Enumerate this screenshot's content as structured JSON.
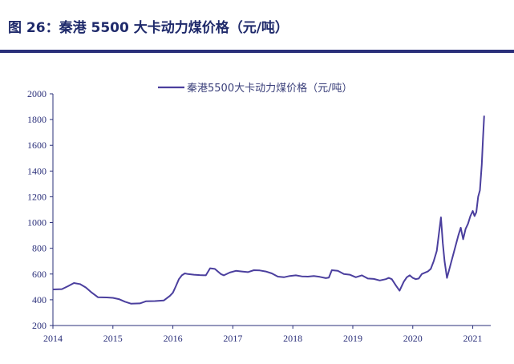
{
  "figure": {
    "title": "图 26：秦港 5500 大卡动力煤价格（元/吨）"
  },
  "colors": {
    "line": "#4b3f9e",
    "axis": "#2a2f7a",
    "rule": "#2a2f7a"
  },
  "chart_data": {
    "type": "line",
    "title": "",
    "xlabel": "",
    "ylabel": "",
    "xlim": [
      2014,
      2021.3
    ],
    "ylim": [
      200,
      2000
    ],
    "yticks": [
      200,
      400,
      600,
      800,
      1000,
      1200,
      1400,
      1600,
      1800,
      2000
    ],
    "xticks": [
      2014,
      2015,
      2016,
      2017,
      2018,
      2019,
      2020,
      2021
    ],
    "grid": false,
    "legend_position": "top",
    "series": [
      {
        "name": "秦港5500大卡动力煤价格（元/吨）",
        "x": [
          2014.0,
          2014.15,
          2014.25,
          2014.35,
          2014.45,
          2014.55,
          2014.65,
          2014.75,
          2014.9,
          2015.0,
          2015.1,
          2015.2,
          2015.3,
          2015.45,
          2015.55,
          2015.7,
          2015.85,
          2015.95,
          2016.0,
          2016.05,
          2016.1,
          2016.15,
          2016.2,
          2016.25,
          2016.35,
          2016.45,
          2016.55,
          2016.62,
          2016.7,
          2016.8,
          2016.85,
          2016.95,
          2017.05,
          2017.15,
          2017.25,
          2017.35,
          2017.45,
          2017.55,
          2017.65,
          2017.75,
          2017.85,
          2017.95,
          2018.05,
          2018.15,
          2018.25,
          2018.35,
          2018.45,
          2018.55,
          2018.6,
          2018.65,
          2018.75,
          2018.85,
          2018.95,
          2019.05,
          2019.15,
          2019.25,
          2019.35,
          2019.45,
          2019.55,
          2019.6,
          2019.65,
          2019.72,
          2019.78,
          2019.85,
          2019.9,
          2019.95,
          2020.0,
          2020.05,
          2020.1,
          2020.15,
          2020.2,
          2020.25,
          2020.3,
          2020.35,
          2020.4,
          2020.44,
          2020.47,
          2020.5,
          2020.53,
          2020.57,
          2020.6,
          2020.64,
          2020.68,
          2020.72,
          2020.76,
          2020.8,
          2020.84,
          2020.88,
          2020.92,
          2020.96,
          2021.0,
          2021.03,
          2021.06,
          2021.09,
          2021.12,
          2021.15,
          2021.17,
          2021.19
        ],
        "y": [
          480,
          483,
          505,
          530,
          522,
          495,
          455,
          420,
          418,
          415,
          405,
          385,
          370,
          372,
          388,
          390,
          395,
          430,
          455,
          505,
          560,
          590,
          605,
          600,
          595,
          592,
          590,
          645,
          640,
          600,
          590,
          612,
          625,
          620,
          615,
          630,
          628,
          620,
          605,
          580,
          575,
          585,
          590,
          582,
          580,
          585,
          578,
          568,
          572,
          630,
          625,
          600,
          595,
          575,
          590,
          565,
          562,
          550,
          560,
          570,
          560,
          510,
          470,
          540,
          575,
          590,
          570,
          560,
          565,
          600,
          610,
          620,
          640,
          700,
          780,
          930,
          1040,
          840,
          700,
          570,
          620,
          690,
          760,
          830,
          900,
          960,
          870,
          950,
          990,
          1050,
          1090,
          1050,
          1080,
          1200,
          1250,
          1450,
          1650,
          1830
        ]
      }
    ]
  }
}
